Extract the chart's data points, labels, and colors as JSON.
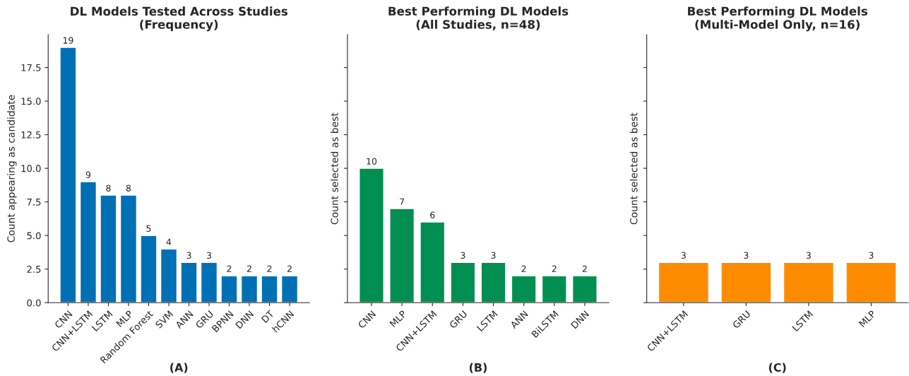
{
  "chart_data": [
    {
      "type": "bar",
      "title": "DL Models Tested Across Studies\n(Frequency)",
      "xlabel": "(A)",
      "ylabel": "Count appearing as candidate",
      "categories": [
        "CNN",
        "CNN+LSTM",
        "LSTM",
        "MLP",
        "Random Forest",
        "SVM",
        "ANN",
        "GRU",
        "BPNN",
        "DNN",
        "DT",
        "hCNN"
      ],
      "values": [
        19,
        9,
        8,
        8,
        5,
        4,
        3,
        3,
        2,
        2,
        2,
        2
      ],
      "color": "#0070b5",
      "ylim": [
        0,
        19.95
      ],
      "yticks": [
        {
          "value": 0,
          "label": "0.0"
        },
        2.5,
        {
          "value": 5,
          "label": "5.0"
        },
        7.5,
        {
          "value": 10,
          "label": "10.0"
        },
        12.5,
        {
          "value": 15,
          "label": "15.0"
        },
        17.5
      ],
      "data_labels": true
    },
    {
      "type": "bar",
      "title": "Best Performing DL Models\n(All Studies, n=48)",
      "xlabel": "(B)",
      "ylabel": "Count selected as best",
      "categories": [
        "CNN",
        "MLP",
        "CNN+LSTM",
        "GRU",
        "LSTM",
        "ANN",
        "BiLSTM",
        "DNN"
      ],
      "values": [
        10,
        7,
        6,
        3,
        3,
        2,
        2,
        2
      ],
      "color": "#008f50",
      "ylim": [
        0,
        19.95
      ],
      "yticks": [
        0,
        2.5,
        5,
        7.5,
        10,
        12.5,
        15,
        17.5
      ],
      "data_labels": true,
      "tick_labels": "x"
    },
    {
      "type": "bar",
      "title": "Best Performing DL Models\n(Multi-Model Only, n=16)",
      "xlabel": "(C)",
      "ylabel": "Count selected as best",
      "categories": [
        "CNN+LSTM",
        "GRU",
        "LSTM",
        "MLP"
      ],
      "values": [
        3,
        3,
        3,
        3
      ],
      "color": "#ff8c00",
      "ylim": [
        0,
        19.95
      ],
      "yticks": [
        0,
        2.5,
        5,
        7.5,
        10,
        12.5,
        15,
        17.5
      ],
      "data_labels": true,
      "tick_labels": "x"
    }
  ]
}
